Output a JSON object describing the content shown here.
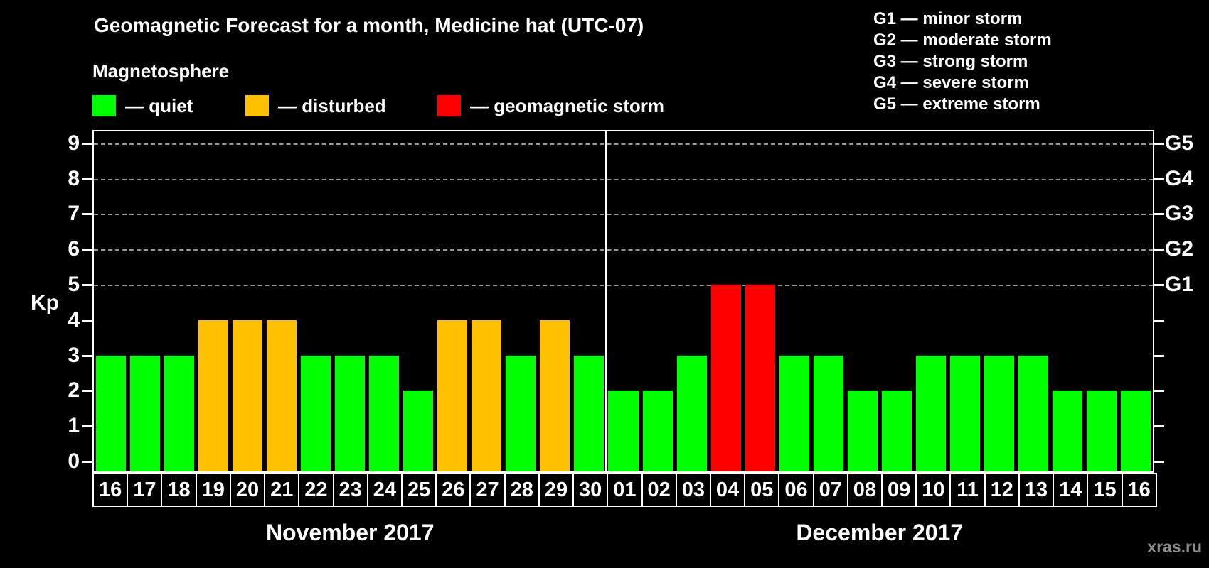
{
  "header": {
    "title": "Geomagnetic Forecast for a month, Medicine hat (UTC-07)",
    "subtitle": "Magnetosphere"
  },
  "legend": {
    "items": [
      {
        "id": "quiet",
        "label": "— quiet",
        "color": "#00ff00"
      },
      {
        "id": "disturbed",
        "label": "— disturbed",
        "color": "#ffc000"
      },
      {
        "id": "geomagnetic-storm",
        "label": "— geomagnetic storm",
        "color": "#ff0000"
      }
    ]
  },
  "g_scale_legend": {
    "items": [
      "G1 — minor storm",
      "G2 — moderate storm",
      "G3 — strong storm",
      "G4 — severe storm",
      "G5 — extreme storm"
    ]
  },
  "watermark": "xras.ru",
  "chart_data": {
    "type": "bar",
    "ylabel": "Kp",
    "ylim": [
      0,
      9
    ],
    "grid": "dashed horizontal lines at Kp 5-9 only",
    "y_ticks_left": [
      0,
      1,
      2,
      3,
      4,
      5,
      6,
      7,
      8,
      9
    ],
    "y_ticks_right": [
      {
        "kp": 5,
        "label": "G1"
      },
      {
        "kp": 6,
        "label": "G2"
      },
      {
        "kp": 7,
        "label": "G3"
      },
      {
        "kp": 8,
        "label": "G4"
      },
      {
        "kp": 9,
        "label": "G5"
      }
    ],
    "color_rules": {
      "quiet_max_kp": 3,
      "disturbed_kp": 4,
      "storm_min_kp": 5
    },
    "colors": {
      "quiet": "#00ff00",
      "disturbed": "#ffc000",
      "storm": "#ff0000"
    },
    "months": [
      {
        "label": "November 2017",
        "days": [
          "16",
          "17",
          "18",
          "19",
          "20",
          "21",
          "22",
          "23",
          "24",
          "25",
          "26",
          "27",
          "28",
          "29",
          "30"
        ],
        "values": [
          3,
          3,
          3,
          4,
          4,
          4,
          3,
          3,
          3,
          2,
          4,
          4,
          3,
          4,
          3
        ]
      },
      {
        "label": "December 2017",
        "days": [
          "01",
          "02",
          "03",
          "04",
          "05",
          "06",
          "07",
          "08",
          "09",
          "10",
          "11",
          "12",
          "13",
          "14",
          "15",
          "16"
        ],
        "values": [
          2,
          2,
          3,
          5,
          5,
          3,
          3,
          2,
          2,
          3,
          3,
          3,
          3,
          2,
          2,
          2
        ]
      }
    ]
  }
}
